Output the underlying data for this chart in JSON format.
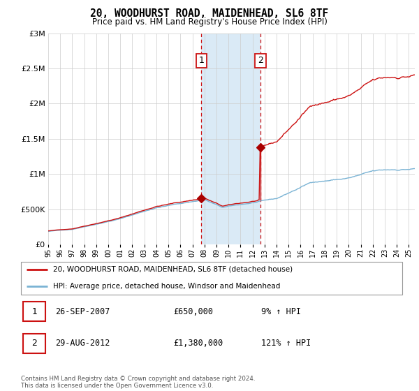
{
  "title": "20, WOODHURST ROAD, MAIDENHEAD, SL6 8TF",
  "subtitle": "Price paid vs. HM Land Registry's House Price Index (HPI)",
  "legend_line1": "20, WOODHURST ROAD, MAIDENHEAD, SL6 8TF (detached house)",
  "legend_line2": "HPI: Average price, detached house, Windsor and Maidenhead",
  "annotation1_date": "26-SEP-2007",
  "annotation1_price": "£650,000",
  "annotation1_hpi": "9% ↑ HPI",
  "annotation2_date": "29-AUG-2012",
  "annotation2_price": "£1,380,000",
  "annotation2_hpi": "121% ↑ HPI",
  "footer": "Contains HM Land Registry data © Crown copyright and database right 2024.\nThis data is licensed under the Open Government Licence v3.0.",
  "sale1_year": 2007.75,
  "sale1_value": 650000,
  "sale2_year": 2012.67,
  "sale2_value": 1380000,
  "hpi_line_color": "#7ab3d4",
  "price_line_color": "#cc1111",
  "sale_dot_color": "#aa0000",
  "shade_color": "#d6e8f5",
  "ylim": [
    0,
    3000000
  ],
  "yticks": [
    0,
    500000,
    1000000,
    1500000,
    2000000,
    2500000,
    3000000
  ],
  "ylabel_map": {
    "0": "£0",
    "500000": "£500K",
    "1000000": "£1M",
    "1500000": "£1.5M",
    "2000000": "£2M",
    "2500000": "£2.5M",
    "3000000": "£3M"
  },
  "xmin": 1995.0,
  "xmax": 2025.5
}
